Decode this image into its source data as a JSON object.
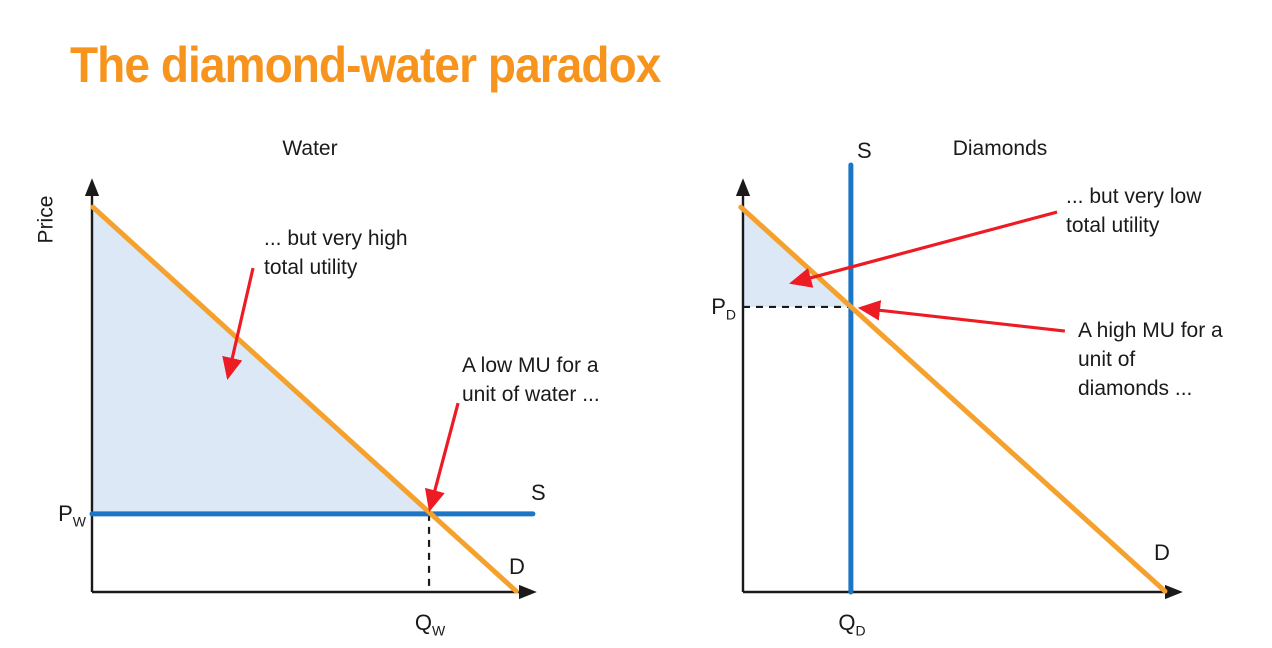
{
  "slide": {
    "title": "The diamond-water paradox",
    "title_color": "#F7941E",
    "background": "#FFFFFF"
  },
  "colors": {
    "demand": "#F4A12D",
    "supply": "#1D76C5",
    "shade": "#DCE8F6",
    "arrow": "#ED1C24",
    "axis": "#1A1A1A",
    "text": "#1A1A1A"
  },
  "chart_data": [
    {
      "type": "line",
      "title": "Water",
      "ylabel": "Price",
      "xlabel": "",
      "axis_ranges": {
        "x": [
          0,
          100
        ],
        "y": [
          0,
          100
        ]
      },
      "grid": false,
      "series": [
        {
          "name": "Supply (perfectly elastic)",
          "label": "S",
          "color_key": "supply",
          "points": [
            [
              0,
              19.1
            ],
            [
              100.2,
              19.1
            ]
          ]
        },
        {
          "name": "Demand",
          "label": "D",
          "color_key": "demand",
          "points": [
            [
              0.2,
              94.1
            ],
            [
              96.4,
              0.2
            ]
          ]
        }
      ],
      "equilibrium": {
        "x": 76.6,
        "y": 19.1
      },
      "axis_point_labels": {
        "price": {
          "base": "P",
          "sub": "W"
        },
        "quantity": {
          "base": "Q",
          "sub": "W"
        }
      },
      "guides": [
        {
          "from": [
            76.6,
            19.1
          ],
          "to": [
            76.6,
            0
          ]
        }
      ],
      "shade": [
        [
          0.2,
          94.1
        ],
        [
          76.6,
          19.1
        ],
        [
          0,
          19.1
        ]
      ],
      "arrows": [
        {
          "from": [
            36.6,
            79.2
          ],
          "to": [
            30.9,
            52.6
          ]
        },
        {
          "from": [
            83.2,
            46.2
          ],
          "to": [
            76.8,
            20.3
          ]
        }
      ],
      "annotations": [
        "... but very high\ntotal utility",
        "A low MU for a\nunit of water ..."
      ]
    },
    {
      "type": "line",
      "title": "Diamonds",
      "ylabel": "",
      "xlabel": "",
      "axis_ranges": {
        "x": [
          0,
          100
        ],
        "y": [
          0,
          100
        ]
      },
      "grid": false,
      "series": [
        {
          "name": "Supply (perfectly inelastic)",
          "label": "S",
          "color_key": "supply",
          "points": [
            [
              24.8,
              0
            ],
            [
              24.8,
              104.4
            ]
          ]
        },
        {
          "name": "Demand",
          "label": "D",
          "color_key": "demand",
          "points": [
            [
              -0.5,
              94.1
            ],
            [
              97,
              0.2
            ]
          ]
        }
      ],
      "equilibrium": {
        "x": 24.8,
        "y": 69.7
      },
      "axis_point_labels": {
        "price": {
          "base": "P",
          "sub": "D"
        },
        "quantity": {
          "base": "Q",
          "sub": "D"
        }
      },
      "guides": [
        {
          "from": [
            0,
            69.7
          ],
          "to": [
            24.8,
            69.7
          ]
        }
      ],
      "shade": [
        [
          0,
          93.7
        ],
        [
          24.8,
          69.7
        ],
        [
          0,
          69.7
        ]
      ],
      "arrows": [
        {
          "from": [
            72.2,
            92.9
          ],
          "to": [
            11.3,
            75.6
          ]
        },
        {
          "from": [
            74.0,
            63.8
          ],
          "to": [
            27.1,
            69.4
          ]
        }
      ],
      "annotations": [
        "... but very low\ntotal utility",
        "A high MU for a\nunit of\ndiamonds ..."
      ]
    }
  ]
}
